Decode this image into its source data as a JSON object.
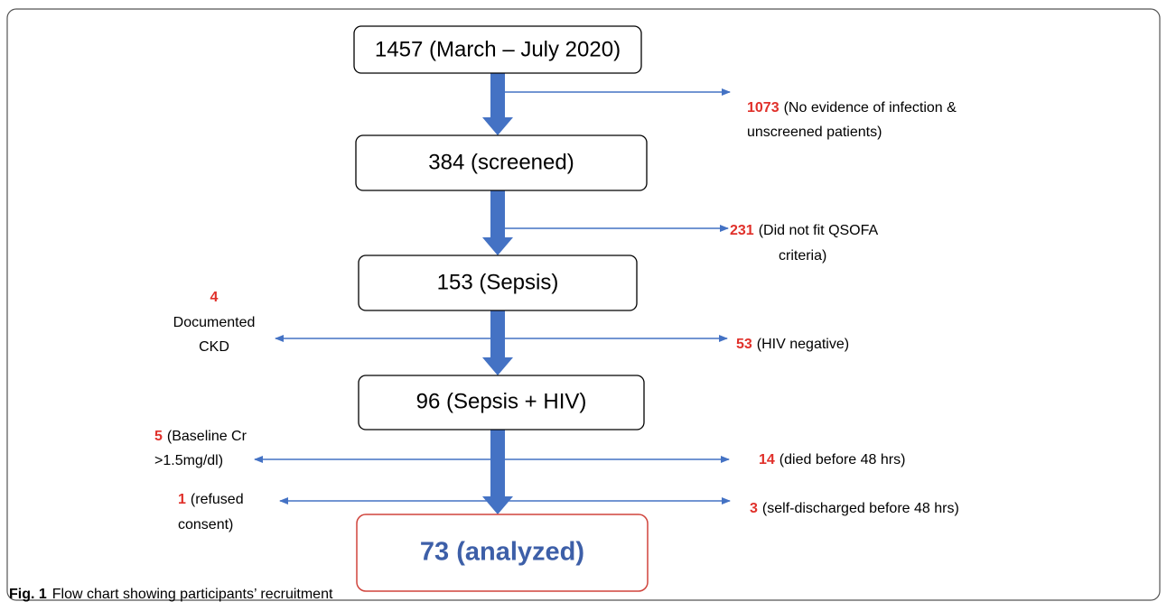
{
  "nodes": [
    {
      "label": "1457 (March – July 2020)"
    },
    {
      "label": "384 (screened)"
    },
    {
      "label": "153 (Sepsis)"
    },
    {
      "label": "96 (Sepsis + HIV)"
    },
    {
      "label": "73 (analyzed)"
    }
  ],
  "exclusions": [
    {
      "count": 1073,
      "lines": [
        "(No evidence of infection &",
        "unscreened patients)"
      ]
    },
    {
      "count": 231,
      "lines": [
        "(Did not fit QSOFA",
        "criteria)"
      ]
    },
    {
      "count": 4,
      "lines": [
        "Documented",
        "CKD"
      ]
    },
    {
      "count": 53,
      "lines": [
        "(HIV negative)"
      ]
    },
    {
      "count": 5,
      "lines": [
        "(Baseline Cr",
        ">1.5mg/dl)"
      ]
    },
    {
      "count": 14,
      "lines": [
        "(died before 48 hrs)"
      ]
    },
    {
      "count": 1,
      "lines": [
        "(refused",
        "consent)"
      ]
    },
    {
      "count": 3,
      "lines": [
        "(self-discharged before 48 hrs)"
      ]
    }
  ],
  "caption": {
    "label": "Fig. 1",
    "text": "Flow chart showing participants’ recruitment"
  }
}
